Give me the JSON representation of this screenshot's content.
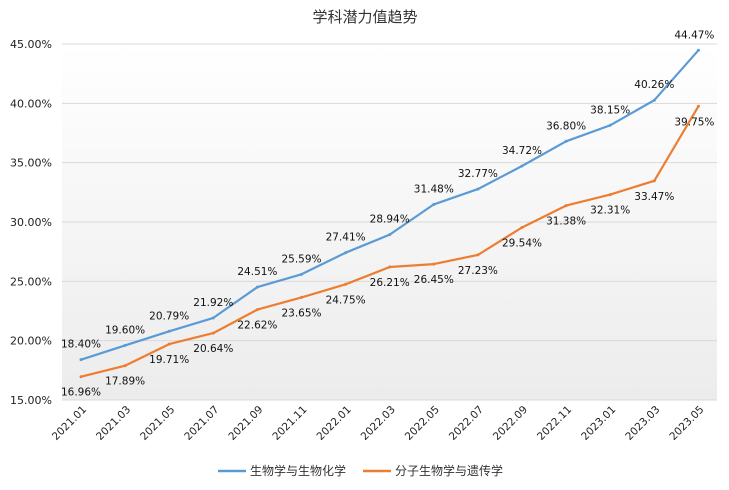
{
  "chart_data": {
    "type": "line",
    "title": "学科潜力值趋势",
    "xlabel": "",
    "ylabel": "",
    "categories": [
      "2021.01",
      "2021.03",
      "2021.05",
      "2021.07",
      "2021.09",
      "2021.11",
      "2022.01",
      "2022.03",
      "2022.05",
      "2022.07",
      "2022.09",
      "2022.11",
      "2023.01",
      "2023.03",
      "2023.05"
    ],
    "y_ticks": [
      "15.00%",
      "20.00%",
      "25.00%",
      "30.00%",
      "35.00%",
      "40.00%",
      "45.00%"
    ],
    "ylim": [
      15,
      45
    ],
    "grid": true,
    "legend_position": "bottom",
    "series": [
      {
        "name": "生物学与生物化学",
        "color": "#5b9bd5",
        "values": [
          18.4,
          19.6,
          20.79,
          21.92,
          24.51,
          25.59,
          27.41,
          28.94,
          31.48,
          32.77,
          34.72,
          36.8,
          38.15,
          40.26,
          44.47
        ],
        "labels": [
          "18.40%",
          "19.60%",
          "20.79%",
          "21.92%",
          "24.51%",
          "25.59%",
          "27.41%",
          "28.94%",
          "31.48%",
          "32.77%",
          "34.72%",
          "36.80%",
          "38.15%",
          "40.26%",
          "44.47%"
        ]
      },
      {
        "name": "分子生物学与遗传学",
        "color": "#ed7d31",
        "values": [
          16.96,
          17.89,
          19.71,
          20.64,
          22.62,
          23.65,
          24.75,
          26.21,
          26.45,
          27.23,
          29.54,
          31.38,
          32.31,
          33.47,
          39.75
        ],
        "labels": [
          "16.96%",
          "17.89%",
          "19.71%",
          "20.64%",
          "22.62%",
          "23.65%",
          "24.75%",
          "26.21%",
          "26.45%",
          "27.23%",
          "29.54%",
          "31.38%",
          "32.31%",
          "33.47%",
          "39.75%"
        ]
      }
    ]
  }
}
